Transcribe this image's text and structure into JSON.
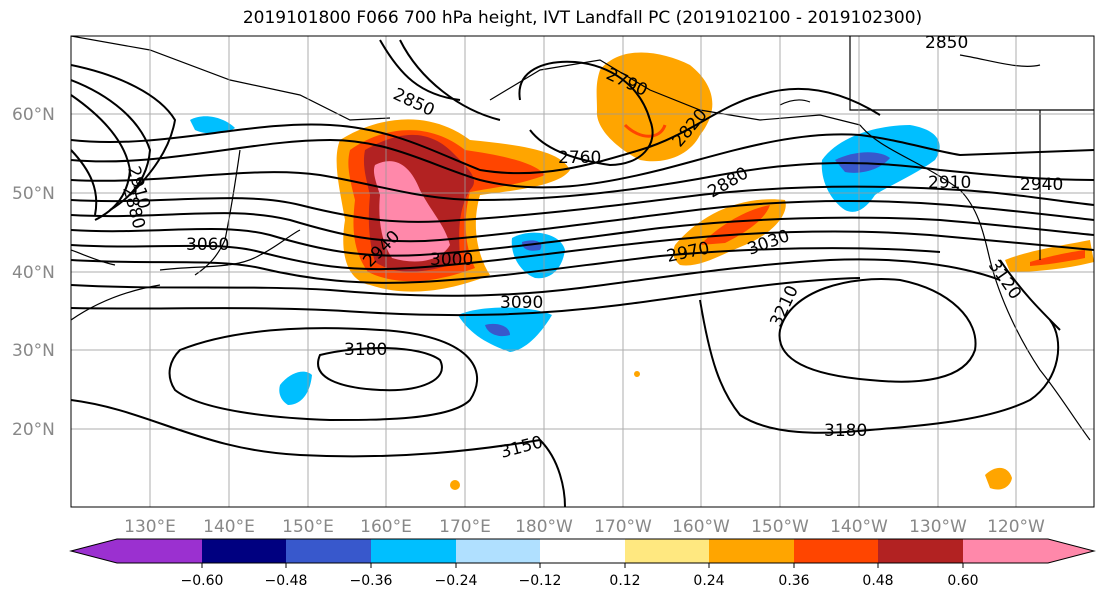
{
  "title": "2019101800 F066 700 hPa height, IVT Landfall PC (2019102100 - 2019102300)",
  "lat_labels": [
    "60°N",
    "50°N",
    "40°N",
    "30°N",
    "20°N"
  ],
  "lon_labels": [
    "130°E",
    "140°E",
    "150°E",
    "160°E",
    "170°E",
    "180°W",
    "170°W",
    "160°W",
    "150°W",
    "140°W",
    "130°W",
    "120°W"
  ],
  "contour_labels": [
    "2850",
    "2850",
    "2790",
    "2820",
    "2760",
    "2910",
    "2880",
    "2880",
    "2910",
    "2940",
    "3060",
    "2940",
    "3000",
    "2970",
    "3030",
    "3090",
    "3210",
    "3180",
    "3180",
    "3150",
    "3120"
  ],
  "colorbar": {
    "colors": [
      "#9b30d0",
      "#000080",
      "#3858cc",
      "#00bfff",
      "#b0e0ff",
      "#ffffff",
      "#ffe880",
      "#ffa500",
      "#ff4500",
      "#b22222",
      "#ff88aa"
    ],
    "ticks": [
      "−0.60",
      "−0.48",
      "−0.36",
      "−0.24",
      "−0.12",
      "0.12",
      "0.24",
      "0.36",
      "0.48",
      "0.60"
    ]
  }
}
